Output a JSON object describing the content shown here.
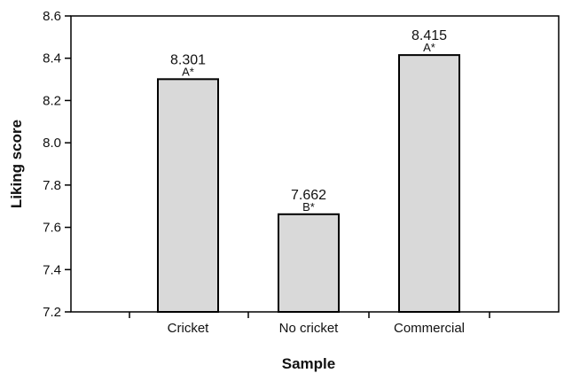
{
  "chart_data": {
    "type": "bar",
    "title": "",
    "xlabel": "Sample",
    "ylabel": "Liking score",
    "categories": [
      "Cricket",
      "No cricket",
      "Commercial"
    ],
    "values": [
      8.301,
      7.662,
      8.415
    ],
    "value_labels": [
      "8.301",
      "7.662",
      "8.415"
    ],
    "group_labels": [
      "A*",
      "B*",
      "A*"
    ],
    "ylim": [
      7.2,
      8.6
    ],
    "yticks": [
      7.2,
      7.4,
      7.6,
      7.8,
      8.0,
      8.2,
      8.4,
      8.6
    ],
    "ytick_labels": [
      "7.2",
      "7.4",
      "7.6",
      "7.8",
      "8.0",
      "8.2",
      "8.4",
      "8.6"
    ],
    "grid": false,
    "legend": "none",
    "bar_color": "#d9d9d9",
    "edge_color": "#000000"
  }
}
